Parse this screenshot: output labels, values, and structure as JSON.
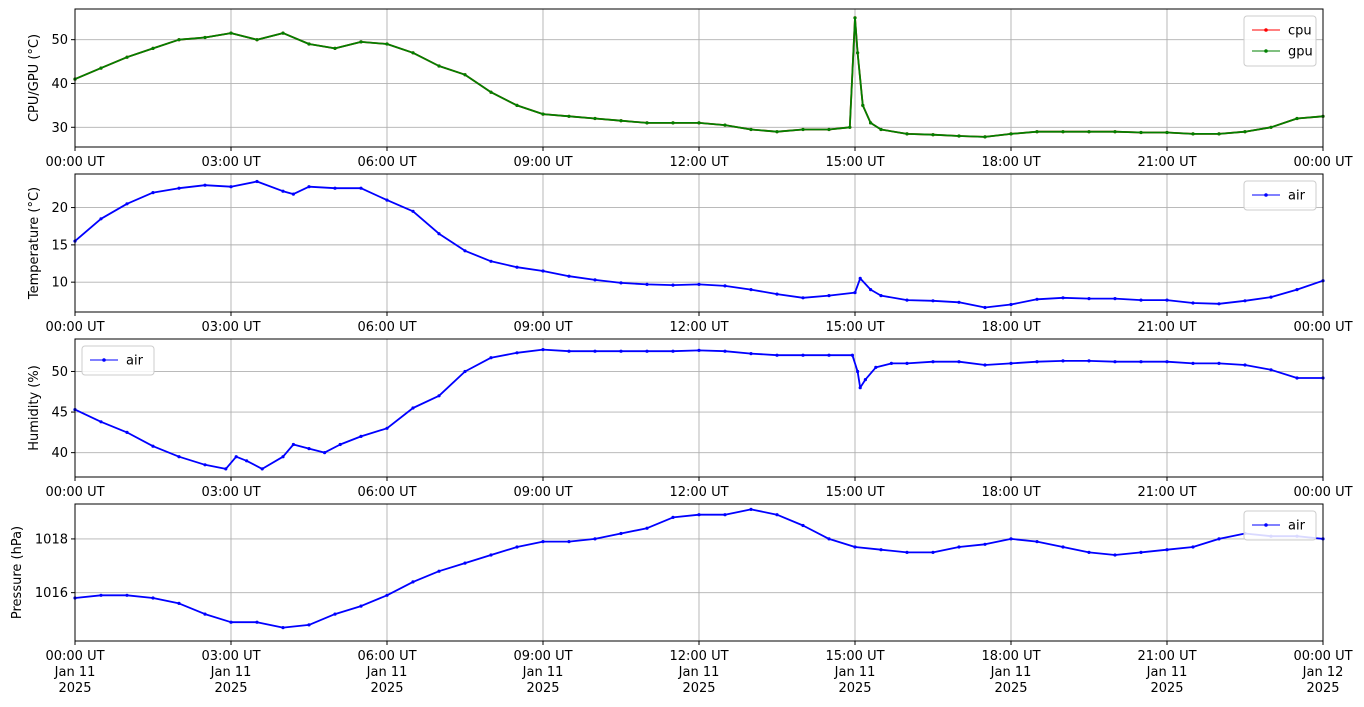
{
  "chart_data": [
    {
      "type": "line",
      "ylabel": "CPU/GPU (°C)",
      "ylim": [
        25.5,
        57
      ],
      "yticks": [
        30,
        40,
        50
      ],
      "legend": "top-right",
      "grid": true,
      "x_tick_labels": [
        "00:00 UT",
        "03:00 UT",
        "06:00 UT",
        "09:00 UT",
        "12:00 UT",
        "15:00 UT",
        "18:00 UT",
        "21:00 UT",
        "00:00 UT"
      ],
      "x_hours": [
        0,
        0.5,
        1,
        1.5,
        2,
        2.5,
        3,
        3.5,
        4,
        4.5,
        5,
        5.5,
        6,
        6.5,
        7,
        7.5,
        8,
        8.5,
        9,
        9.5,
        10,
        10.5,
        11,
        11.5,
        12,
        12.5,
        13,
        13.5,
        14,
        14.5,
        14.9,
        15.0,
        15.05,
        15.15,
        15.3,
        15.5,
        16,
        16.5,
        17,
        17.5,
        18,
        18.5,
        19,
        19.5,
        20,
        20.5,
        21,
        21.5,
        22,
        22.5,
        23,
        23.5,
        24
      ],
      "series": [
        {
          "name": "cpu",
          "color": "#ff0000",
          "values": [
            41,
            43.5,
            46,
            48,
            50,
            50.5,
            51.5,
            50,
            51.5,
            49,
            48,
            49.5,
            49,
            47,
            44,
            42,
            38,
            35,
            33,
            32.5,
            32,
            31.5,
            31,
            31,
            31,
            30.5,
            29.5,
            29,
            29.5,
            29.5,
            30,
            55,
            47,
            35,
            31,
            29.5,
            28.5,
            28.3,
            28,
            27.8,
            28.5,
            29,
            29,
            29,
            29,
            28.8,
            28.8,
            28.5,
            28.5,
            29,
            30,
            32,
            32.5
          ]
        },
        {
          "name": "gpu",
          "color": "#008000",
          "values": [
            41,
            43.5,
            46,
            48,
            50,
            50.5,
            51.5,
            50,
            51.5,
            49,
            48,
            49.5,
            49,
            47,
            44,
            42,
            38,
            35,
            33,
            32.5,
            32,
            31.5,
            31,
            31,
            31,
            30.5,
            29.5,
            29,
            29.5,
            29.5,
            30,
            55,
            47,
            35,
            31,
            29.5,
            28.5,
            28.3,
            28,
            27.8,
            28.5,
            29,
            29,
            29,
            29,
            28.8,
            28.8,
            28.5,
            28.5,
            29,
            30,
            32,
            32.5
          ]
        }
      ]
    },
    {
      "type": "line",
      "ylabel": "Temperature (°C)",
      "ylim": [
        6,
        24.5
      ],
      "yticks": [
        10,
        15,
        20
      ],
      "legend": "top-right",
      "grid": true,
      "x_tick_labels": [
        "00:00 UT",
        "03:00 UT",
        "06:00 UT",
        "09:00 UT",
        "12:00 UT",
        "15:00 UT",
        "18:00 UT",
        "21:00 UT",
        "00:00 UT"
      ],
      "x_hours": [
        0,
        0.5,
        1,
        1.5,
        2,
        2.5,
        3,
        3.5,
        4,
        4.2,
        4.5,
        5,
        5.5,
        6,
        6.5,
        7,
        7.5,
        8,
        8.5,
        9,
        9.5,
        10,
        10.5,
        11,
        11.5,
        12,
        12.5,
        13,
        13.5,
        14,
        14.5,
        15,
        15.1,
        15.3,
        15.5,
        16,
        16.5,
        17,
        17.5,
        18,
        18.5,
        19,
        19.5,
        20,
        20.5,
        21,
        21.5,
        22,
        22.5,
        23,
        23.5,
        24
      ],
      "series": [
        {
          "name": "air",
          "color": "#0000ff",
          "values": [
            15.5,
            18.5,
            20.5,
            22,
            22.6,
            23,
            22.8,
            23.5,
            22.2,
            21.8,
            22.8,
            22.6,
            22.6,
            21,
            19.5,
            16.5,
            14.2,
            12.8,
            12,
            11.5,
            10.8,
            10.3,
            9.9,
            9.7,
            9.6,
            9.7,
            9.5,
            9,
            8.4,
            7.9,
            8.2,
            8.6,
            10.5,
            9,
            8.2,
            7.6,
            7.5,
            7.3,
            6.6,
            7,
            7.7,
            7.9,
            7.8,
            7.8,
            7.6,
            7.6,
            7.2,
            7.1,
            7.5,
            8,
            9,
            10.2
          ]
        }
      ]
    },
    {
      "type": "line",
      "ylabel": "Humidity (%)",
      "ylim": [
        37,
        54
      ],
      "yticks": [
        40,
        45,
        50
      ],
      "legend": "top-left",
      "grid": true,
      "x_tick_labels": [
        "00:00 UT",
        "03:00 UT",
        "06:00 UT",
        "09:00 UT",
        "12:00 UT",
        "15:00 UT",
        "18:00 UT",
        "21:00 UT",
        "00:00 UT"
      ],
      "x_hours": [
        0,
        0.5,
        1,
        1.5,
        2,
        2.5,
        2.9,
        3.1,
        3.3,
        3.6,
        4,
        4.2,
        4.5,
        4.8,
        5.1,
        5.5,
        6,
        6.5,
        7,
        7.5,
        8,
        8.5,
        9,
        9.5,
        10,
        10.5,
        11,
        11.5,
        12,
        12.5,
        13,
        13.5,
        14,
        14.5,
        14.95,
        15.05,
        15.1,
        15.2,
        15.4,
        15.7,
        16,
        16.5,
        17,
        17.5,
        18,
        18.5,
        19,
        19.5,
        20,
        20.5,
        21,
        21.5,
        22,
        22.5,
        23,
        23.5,
        24
      ],
      "series": [
        {
          "name": "air",
          "color": "#0000ff",
          "values": [
            45.3,
            43.8,
            42.5,
            40.8,
            39.5,
            38.5,
            38,
            39.5,
            39,
            38,
            39.5,
            41,
            40.5,
            40,
            41,
            42,
            43,
            45.5,
            47,
            50,
            51.7,
            52.3,
            52.7,
            52.5,
            52.5,
            52.5,
            52.5,
            52.5,
            52.6,
            52.5,
            52.2,
            52,
            52,
            52,
            52,
            50,
            48,
            49,
            50.5,
            51,
            51,
            51.2,
            51.2,
            50.8,
            51,
            51.2,
            51.3,
            51.3,
            51.2,
            51.2,
            51.2,
            51,
            51,
            50.8,
            50.2,
            49.2,
            49.2
          ]
        }
      ]
    },
    {
      "type": "line",
      "ylabel": "Pressure (hPa)",
      "ylim": [
        1014.2,
        1019.3
      ],
      "yticks": [
        1016,
        1018
      ],
      "legend": "top-right",
      "grid": true,
      "x_tick_labels": [
        "00:00 UT\nJan 11\n2025",
        "03:00 UT\nJan 11\n2025",
        "06:00 UT\nJan 11\n2025",
        "09:00 UT\nJan 11\n2025",
        "12:00 UT\nJan 11\n2025",
        "15:00 UT\nJan 11\n2025",
        "18:00 UT\nJan 11\n2025",
        "21:00 UT\nJan 11\n2025",
        "00:00 UT\nJan 12\n2025"
      ],
      "x_hours": [
        0,
        0.5,
        1,
        1.5,
        2,
        2.5,
        3,
        3.5,
        4,
        4.5,
        5,
        5.5,
        6,
        6.5,
        7,
        7.5,
        8,
        8.5,
        9,
        9.5,
        10,
        10.5,
        11,
        11.5,
        12,
        12.5,
        13,
        13.5,
        14,
        14.5,
        15,
        15.5,
        16,
        16.5,
        17,
        17.5,
        18,
        18.5,
        19,
        19.5,
        20,
        20.5,
        21,
        21.5,
        22,
        22.5,
        23,
        23.5,
        24
      ],
      "series": [
        {
          "name": "air",
          "color": "#0000ff",
          "values": [
            1015.8,
            1015.9,
            1015.9,
            1015.8,
            1015.6,
            1015.2,
            1014.9,
            1014.9,
            1014.7,
            1014.8,
            1015.2,
            1015.5,
            1015.9,
            1016.4,
            1016.8,
            1017.1,
            1017.4,
            1017.7,
            1017.9,
            1017.9,
            1018,
            1018.2,
            1018.4,
            1018.8,
            1018.9,
            1018.9,
            1019.1,
            1018.9,
            1018.5,
            1018,
            1017.7,
            1017.6,
            1017.5,
            1017.5,
            1017.7,
            1017.8,
            1018,
            1017.9,
            1017.7,
            1017.5,
            1017.4,
            1017.5,
            1017.6,
            1017.7,
            1018,
            1018.2,
            1018.1,
            1018.1,
            1018
          ]
        }
      ]
    }
  ]
}
